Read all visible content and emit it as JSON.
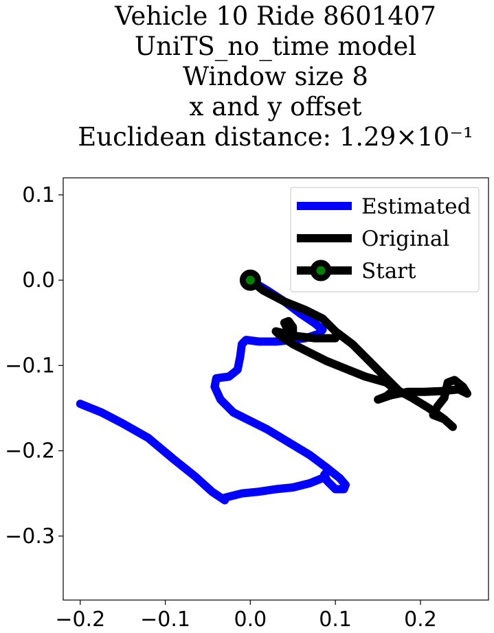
{
  "chart_data": {
    "type": "line",
    "title_lines": [
      "Vehicle 10 Ride 8601407",
      "UniTS_no_time model",
      "Window size 8",
      "x and y offset",
      "Euclidean distance: 1.29×10⁻¹"
    ],
    "xlabel": "",
    "ylabel": "",
    "xlim": [
      -0.22,
      0.28
    ],
    "ylim": [
      -0.375,
      0.12
    ],
    "xticks": [
      -0.2,
      -0.1,
      0.0,
      0.1,
      0.2
    ],
    "xtick_labels": [
      "−0.2",
      "−0.1",
      "0.0",
      "0.1",
      "0.2"
    ],
    "yticks": [
      0.1,
      0.0,
      -0.1,
      -0.2,
      -0.3
    ],
    "ytick_labels": [
      "0.1",
      "0.0",
      "−0.1",
      "−0.2",
      "−0.3"
    ],
    "grid": false,
    "legend_position": "top-right",
    "series": [
      {
        "name": "Estimated",
        "color": "#0000ff",
        "points": [
          [
            0.0,
            0.0
          ],
          [
            0.02,
            -0.012
          ],
          [
            0.04,
            -0.025
          ],
          [
            0.06,
            -0.04
          ],
          [
            0.075,
            -0.05
          ],
          [
            0.085,
            -0.058
          ],
          [
            0.08,
            -0.063
          ],
          [
            0.065,
            -0.068
          ],
          [
            0.05,
            -0.07
          ],
          [
            0.03,
            -0.072
          ],
          [
            0.01,
            -0.072
          ],
          [
            -0.005,
            -0.07
          ],
          [
            -0.01,
            -0.075
          ],
          [
            -0.012,
            -0.09
          ],
          [
            -0.015,
            -0.105
          ],
          [
            -0.025,
            -0.113
          ],
          [
            -0.04,
            -0.115
          ],
          [
            -0.042,
            -0.125
          ],
          [
            -0.035,
            -0.14
          ],
          [
            -0.02,
            -0.155
          ],
          [
            0.0,
            -0.165
          ],
          [
            0.02,
            -0.175
          ],
          [
            0.045,
            -0.19
          ],
          [
            0.07,
            -0.205
          ],
          [
            0.09,
            -0.22
          ],
          [
            0.105,
            -0.232
          ],
          [
            0.112,
            -0.24
          ],
          [
            0.11,
            -0.245
          ],
          [
            0.1,
            -0.245
          ],
          [
            0.09,
            -0.235
          ],
          [
            0.087,
            -0.228
          ],
          [
            0.09,
            -0.225
          ],
          [
            0.085,
            -0.232
          ],
          [
            0.07,
            -0.238
          ],
          [
            0.05,
            -0.243
          ],
          [
            0.03,
            -0.245
          ],
          [
            0.01,
            -0.248
          ],
          [
            -0.01,
            -0.25
          ],
          [
            -0.03,
            -0.255
          ],
          [
            -0.03,
            -0.258
          ],
          [
            -0.045,
            -0.248
          ],
          [
            -0.065,
            -0.23
          ],
          [
            -0.09,
            -0.21
          ],
          [
            -0.12,
            -0.185
          ],
          [
            -0.15,
            -0.168
          ],
          [
            -0.175,
            -0.155
          ],
          [
            -0.2,
            -0.145
          ]
        ]
      },
      {
        "name": "Original",
        "color": "#000000",
        "points": [
          [
            0.0,
            0.0
          ],
          [
            0.015,
            -0.012
          ],
          [
            0.04,
            -0.025
          ],
          [
            0.065,
            -0.035
          ],
          [
            0.085,
            -0.045
          ],
          [
            0.1,
            -0.06
          ],
          [
            0.12,
            -0.075
          ],
          [
            0.14,
            -0.095
          ],
          [
            0.16,
            -0.115
          ],
          [
            0.175,
            -0.13
          ],
          [
            0.19,
            -0.138
          ],
          [
            0.21,
            -0.15
          ],
          [
            0.228,
            -0.163
          ],
          [
            0.238,
            -0.172
          ],
          [
            0.228,
            -0.163
          ],
          [
            0.215,
            -0.158
          ],
          [
            0.22,
            -0.148
          ],
          [
            0.228,
            -0.138
          ],
          [
            0.232,
            -0.12
          ],
          [
            0.24,
            -0.117
          ],
          [
            0.25,
            -0.125
          ],
          [
            0.255,
            -0.133
          ],
          [
            0.245,
            -0.128
          ],
          [
            0.225,
            -0.13
          ],
          [
            0.205,
            -0.131
          ],
          [
            0.185,
            -0.131
          ],
          [
            0.165,
            -0.135
          ],
          [
            0.15,
            -0.14
          ],
          [
            0.16,
            -0.136
          ],
          [
            0.17,
            -0.128
          ],
          [
            0.16,
            -0.12
          ],
          [
            0.135,
            -0.113
          ],
          [
            0.11,
            -0.103
          ],
          [
            0.09,
            -0.095
          ],
          [
            0.07,
            -0.085
          ],
          [
            0.05,
            -0.075
          ],
          [
            0.035,
            -0.065
          ],
          [
            0.03,
            -0.06
          ],
          [
            0.05,
            -0.065
          ],
          [
            0.075,
            -0.068
          ],
          [
            0.1,
            -0.068
          ],
          [
            0.075,
            -0.068
          ],
          [
            0.05,
            -0.065
          ],
          [
            0.05,
            -0.055
          ],
          [
            0.045,
            -0.048
          ],
          [
            0.04,
            -0.05
          ],
          [
            0.045,
            -0.06
          ]
        ]
      }
    ],
    "start_point": {
      "name": "Start",
      "x": 0.0,
      "y": 0.0,
      "marker_fill": "#008000",
      "marker_edge": "#000000"
    }
  }
}
